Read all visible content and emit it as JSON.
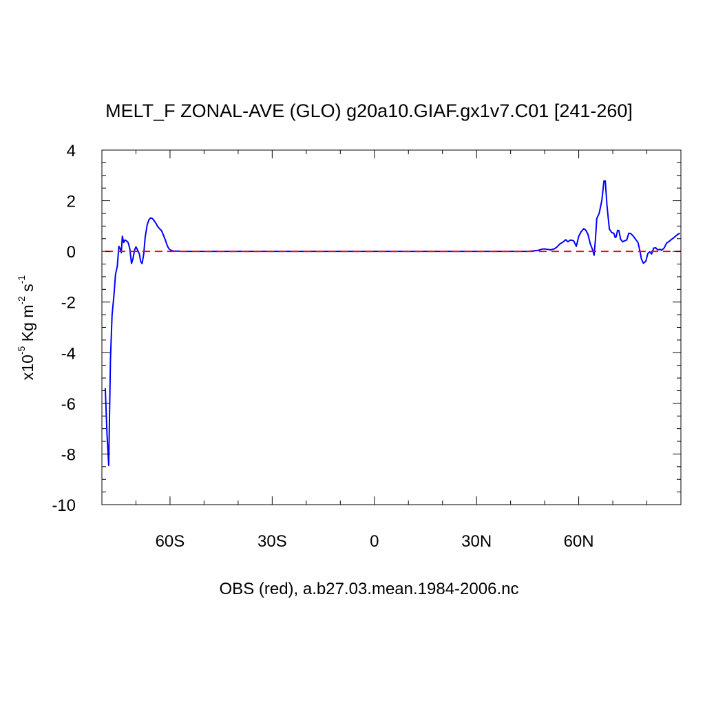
{
  "chart_data": {
    "type": "line",
    "title": "MELT_F ZONAL-AVE (GLO) g20a10.GIAF.gx1v7.C01 [241-260]",
    "xlabel": "OBS (red), a.b27.03.mean.1984-2006.nc",
    "ylabel": {
      "prefix": "x10",
      "exp1": "-5",
      "mid1": " Kg m",
      "exp2": "-2",
      "mid2": " s",
      "exp3": "-1"
    },
    "xlim": [
      -80,
      90
    ],
    "ylim": [
      -10,
      4
    ],
    "x_ticks": [
      {
        "value": -60,
        "label": "60S"
      },
      {
        "value": -30,
        "label": "30S"
      },
      {
        "value": 0,
        "label": "0"
      },
      {
        "value": 30,
        "label": "30N"
      },
      {
        "value": 60,
        "label": "60N"
      }
    ],
    "y_ticks": [
      {
        "value": 4,
        "label": "4"
      },
      {
        "value": 2,
        "label": "2"
      },
      {
        "value": 0,
        "label": "0"
      },
      {
        "value": -2,
        "label": "-2"
      },
      {
        "value": -4,
        "label": "-4"
      },
      {
        "value": -6,
        "label": "-6"
      },
      {
        "value": -8,
        "label": "-8"
      },
      {
        "value": -10,
        "label": "-10"
      }
    ],
    "series": [
      {
        "color": "#0000ff",
        "style": "solid",
        "x": [
          -79,
          -78.5,
          -78,
          -77.5,
          -77,
          -76.5,
          -76,
          -75.5,
          -75,
          -74.6,
          -74.3,
          -74,
          -73.6,
          -73.2,
          -72.8,
          -72.3,
          -71.8,
          -71.3,
          -70.9,
          -70.4,
          -70,
          -69.5,
          -69,
          -68.6,
          -68.2,
          -67.7,
          -67.3,
          -66.7,
          -66.2,
          -65.7,
          -65.2,
          -64.7,
          -64.1,
          -63.6,
          -63.1,
          -62.5,
          -61.8,
          -61.3,
          -60.8,
          -60.3,
          -59.7,
          -59.1,
          -58.6,
          -58,
          -57.4,
          -56.8,
          -56.2,
          -55.6,
          -55,
          -53,
          -50,
          -45,
          -40,
          -35,
          -30,
          -25,
          -20,
          -15,
          -10,
          -5,
          0,
          5,
          10,
          15,
          20,
          25,
          30,
          35,
          40,
          45,
          48,
          49.3,
          50,
          50.8,
          51.8,
          52.8,
          53.5,
          54.5,
          55.3,
          56.2,
          56.8,
          57.6,
          58.5,
          59.3,
          60,
          60.7,
          61.5,
          62.1,
          62.7,
          63.4,
          64.1,
          64.5,
          64.9,
          65.3,
          66,
          66.8,
          67.4,
          67.8,
          68.3,
          69,
          69.7,
          70.3,
          70.7,
          71,
          71.4,
          71.8,
          72.3,
          72.9,
          73.5,
          74.1,
          74.7,
          75.3,
          75.9,
          76.6,
          77.4,
          78,
          78.4,
          79,
          79.7,
          80.3,
          80.8,
          81.4,
          82,
          82.6,
          83.2,
          83.9,
          84.4,
          85.1,
          85.8,
          86.4,
          87.2,
          88,
          88.6,
          89.2,
          89.7
        ],
        "y": [
          -5.4,
          -7.2,
          -8.45,
          -4.3,
          -2.5,
          -1.8,
          -0.9,
          -0.6,
          0.2,
          0.1,
          -0.05,
          0.6,
          0.35,
          0.45,
          0.42,
          0.35,
          0.1,
          -0.48,
          -0.3,
          0.05,
          0.18,
          0.05,
          -0.1,
          -0.4,
          -0.48,
          -0.1,
          0.55,
          1.05,
          1.25,
          1.32,
          1.3,
          1.22,
          1.1,
          0.98,
          0.9,
          0.82,
          0.6,
          0.42,
          0.22,
          0.1,
          0.04,
          0.02,
          0.01,
          0.01,
          0.01,
          0.0,
          0.0,
          0.0,
          0.0,
          0.0,
          0.0,
          0.0,
          0.0,
          0.0,
          0.0,
          0.0,
          0.0,
          0.0,
          0.0,
          0.0,
          0.0,
          0.0,
          0.0,
          0.0,
          0.0,
          0.0,
          0.0,
          0.0,
          0.0,
          0.0,
          0.04,
          0.09,
          0.1,
          0.08,
          0.06,
          0.1,
          0.16,
          0.3,
          0.36,
          0.46,
          0.38,
          0.45,
          0.42,
          0.2,
          0.6,
          0.78,
          0.9,
          0.83,
          0.68,
          0.3,
          0.05,
          -0.15,
          0.45,
          1.3,
          1.5,
          2.02,
          2.78,
          2.78,
          1.82,
          0.88,
          0.74,
          0.72,
          0.55,
          0.58,
          0.83,
          0.82,
          0.48,
          0.38,
          0.42,
          0.45,
          0.72,
          0.7,
          0.62,
          0.5,
          0.35,
          0.0,
          -0.3,
          -0.47,
          -0.39,
          -0.08,
          -0.02,
          -0.1,
          0.13,
          0.14,
          0.06,
          0.08,
          0.05,
          0.14,
          0.33,
          0.38,
          0.47,
          0.55,
          0.62,
          0.68,
          0.72
        ]
      },
      {
        "color": "#ff0000",
        "style": "dashed",
        "x": [
          -79,
          90
        ],
        "y": [
          0,
          0
        ]
      }
    ],
    "grid": false,
    "legend": "none"
  }
}
